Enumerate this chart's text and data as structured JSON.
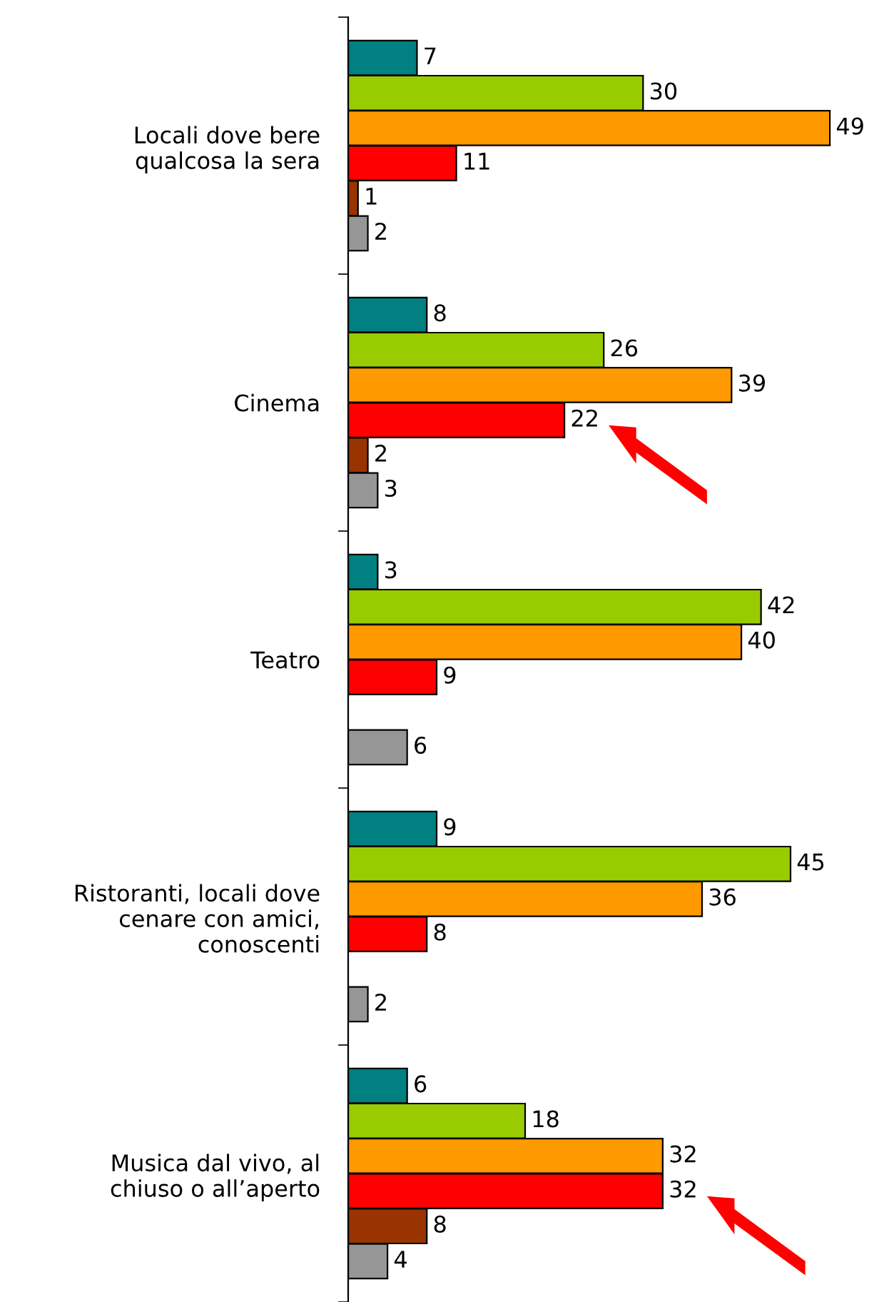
{
  "chart_data": {
    "type": "bar",
    "orientation": "horizontal",
    "categories": [
      "Locali dove bere\nqualcosa la sera",
      "Cinema",
      "Teatro",
      "Ristoranti, locali dove\ncenare con amici,\nconoscenti",
      "Musica dal vivo, al\nchiuso o all’aperto"
    ],
    "series": [
      {
        "color": "#008080",
        "values": [
          7,
          8,
          3,
          9,
          6
        ]
      },
      {
        "color": "#99cc00",
        "values": [
          30,
          26,
          42,
          45,
          18
        ]
      },
      {
        "color": "#ff9900",
        "values": [
          49,
          39,
          40,
          36,
          32
        ]
      },
      {
        "color": "#ff0000",
        "values": [
          11,
          22,
          9,
          8,
          32
        ]
      },
      {
        "color": "#993300",
        "values": [
          1,
          2,
          null,
          null,
          8
        ]
      },
      {
        "color": "#969696",
        "values": [
          2,
          3,
          6,
          2,
          4
        ]
      }
    ],
    "data_labels": true,
    "grid": false,
    "legend": false
  }
}
